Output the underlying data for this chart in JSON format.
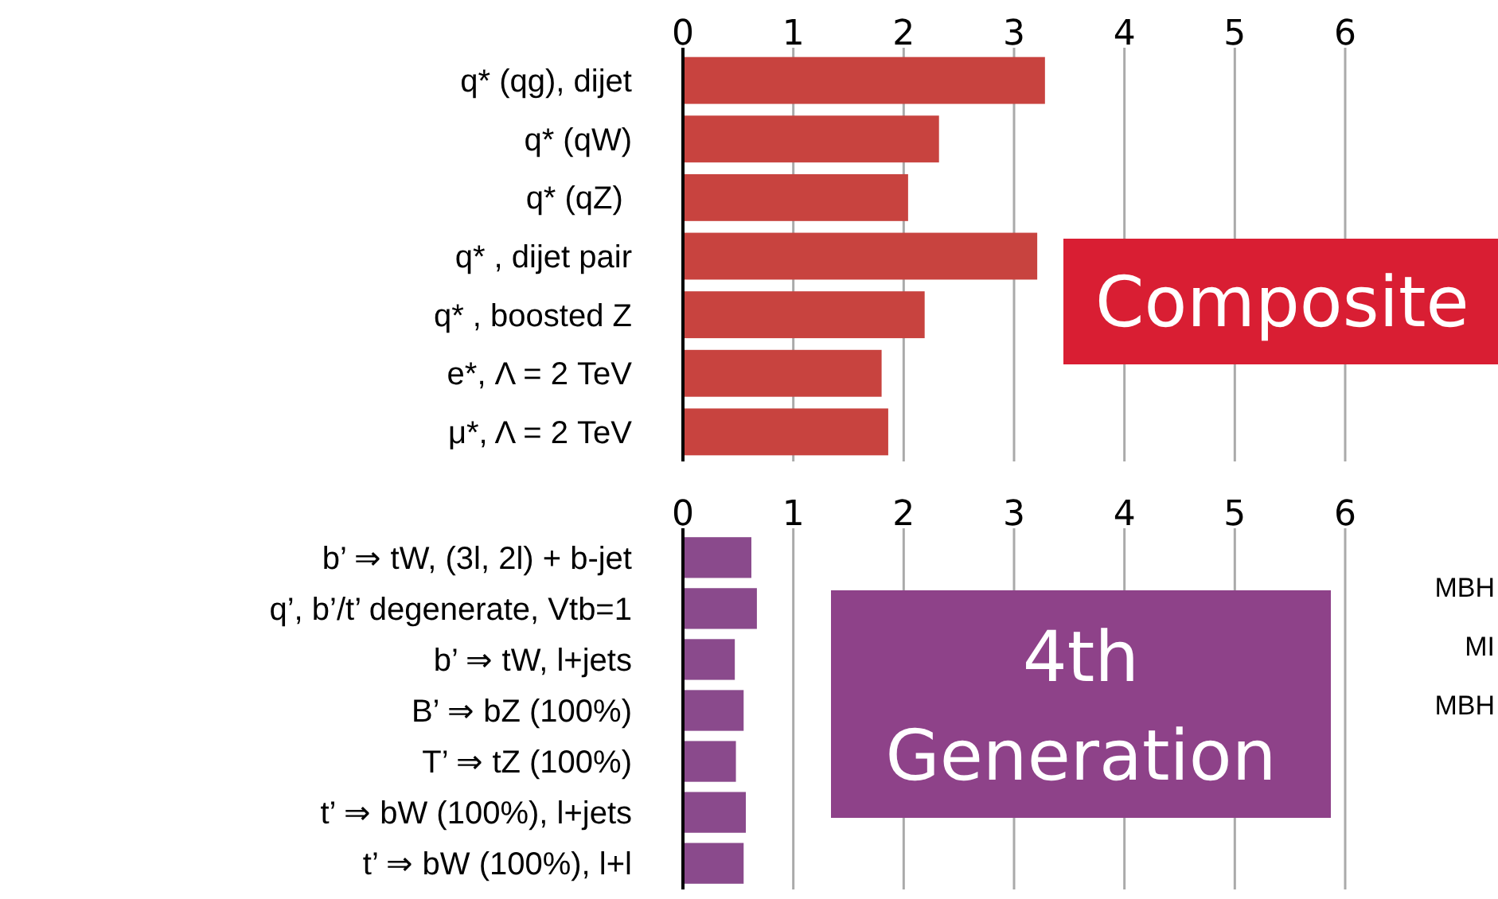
{
  "chart_data": [
    {
      "type": "bar",
      "orientation": "horizontal",
      "categories": [
        "q* (qg), dijet",
        "q* (qW)",
        "q* (qZ) ",
        "q* , dijet pair",
        "q* , boosted Z",
        "e*, Λ = 2 TeV",
        "μ*, Λ = 2 TeV"
      ],
      "values": [
        3.28,
        2.32,
        2.04,
        3.21,
        2.19,
        1.8,
        1.86
      ],
      "color": "#c8433f",
      "xlim": [
        0,
        6
      ],
      "xticks": [
        0,
        1,
        2,
        3,
        4,
        5,
        6
      ],
      "grid": "x",
      "annotations": [
        "Composite"
      ]
    },
    {
      "type": "bar",
      "orientation": "horizontal",
      "categories": [
        "b’ ⇒ tW, (3l, 2l) + b-jet",
        "q’, b’/t’ degenerate, Vtb=1",
        "b’ ⇒ tW, l+jets",
        "B’ ⇒ bZ (100%)",
        "T’ ⇒ tZ (100%)",
        "t’ ⇒ bW (100%), l+jets",
        "t’ ⇒ bW (100%), l+l"
      ],
      "values": [
        0.62,
        0.67,
        0.47,
        0.55,
        0.48,
        0.57,
        0.55
      ],
      "color": "#8a4a8c",
      "xlim": [
        0,
        6
      ],
      "xticks": [
        0,
        1,
        2,
        3,
        4,
        5,
        6
      ],
      "grid": "x",
      "annotations": [
        "4th Generation",
        "MBH",
        "MI",
        "MBH"
      ]
    }
  ]
}
